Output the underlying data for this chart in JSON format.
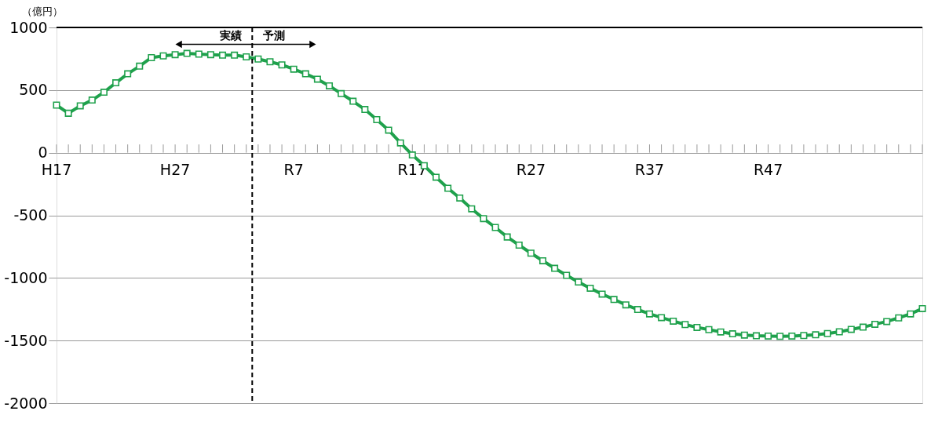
{
  "chart_data": {
    "type": "line",
    "ylabel": "（億円）",
    "categories": [
      "H17",
      null,
      null,
      null,
      null,
      null,
      null,
      null,
      null,
      null,
      "H27",
      null,
      null,
      null,
      null,
      null,
      null,
      null,
      null,
      null,
      "R7",
      null,
      null,
      null,
      null,
      null,
      null,
      null,
      null,
      null,
      "R17",
      null,
      null,
      null,
      null,
      null,
      null,
      null,
      null,
      null,
      "R27",
      null,
      null,
      null,
      null,
      null,
      null,
      null,
      null,
      null,
      "R37",
      null,
      null,
      null,
      null,
      null,
      null,
      null,
      null,
      null,
      "R47",
      null,
      null,
      null,
      null,
      null,
      null,
      null,
      null,
      null,
      null,
      null,
      null,
      null
    ],
    "series": [
      {
        "color": "#1fa14c",
        "values": [
          380,
          315,
          374,
          420,
          483,
          558,
          630,
          691,
          759,
          773,
          783,
          793,
          787,
          783,
          779,
          779,
          765,
          748,
          726,
          701,
          667,
          630,
          587,
          534,
          472,
          411,
          345,
          264,
          180,
          78,
          -18,
          -104,
          -196,
          -284,
          -362,
          -448,
          -526,
          -597,
          -673,
          -738,
          -802,
          -863,
          -923,
          -979,
          -1033,
          -1082,
          -1129,
          -1172,
          -1215,
          -1252,
          -1287,
          -1317,
          -1345,
          -1372,
          -1395,
          -1413,
          -1431,
          -1446,
          -1456,
          -1462,
          -1464,
          -1466,
          -1464,
          -1460,
          -1454,
          -1444,
          -1430,
          -1411,
          -1393,
          -1370,
          -1348,
          -1319,
          -1287,
          -1245
        ]
      }
    ],
    "ylim": [
      -2000,
      1000
    ],
    "yticks": [
      -2000,
      -1500,
      -1000,
      -500,
      0,
      500,
      1000
    ],
    "annotations": [
      "実績",
      "予測"
    ],
    "grid": "y",
    "marker": "square",
    "line_style": "solid"
  }
}
